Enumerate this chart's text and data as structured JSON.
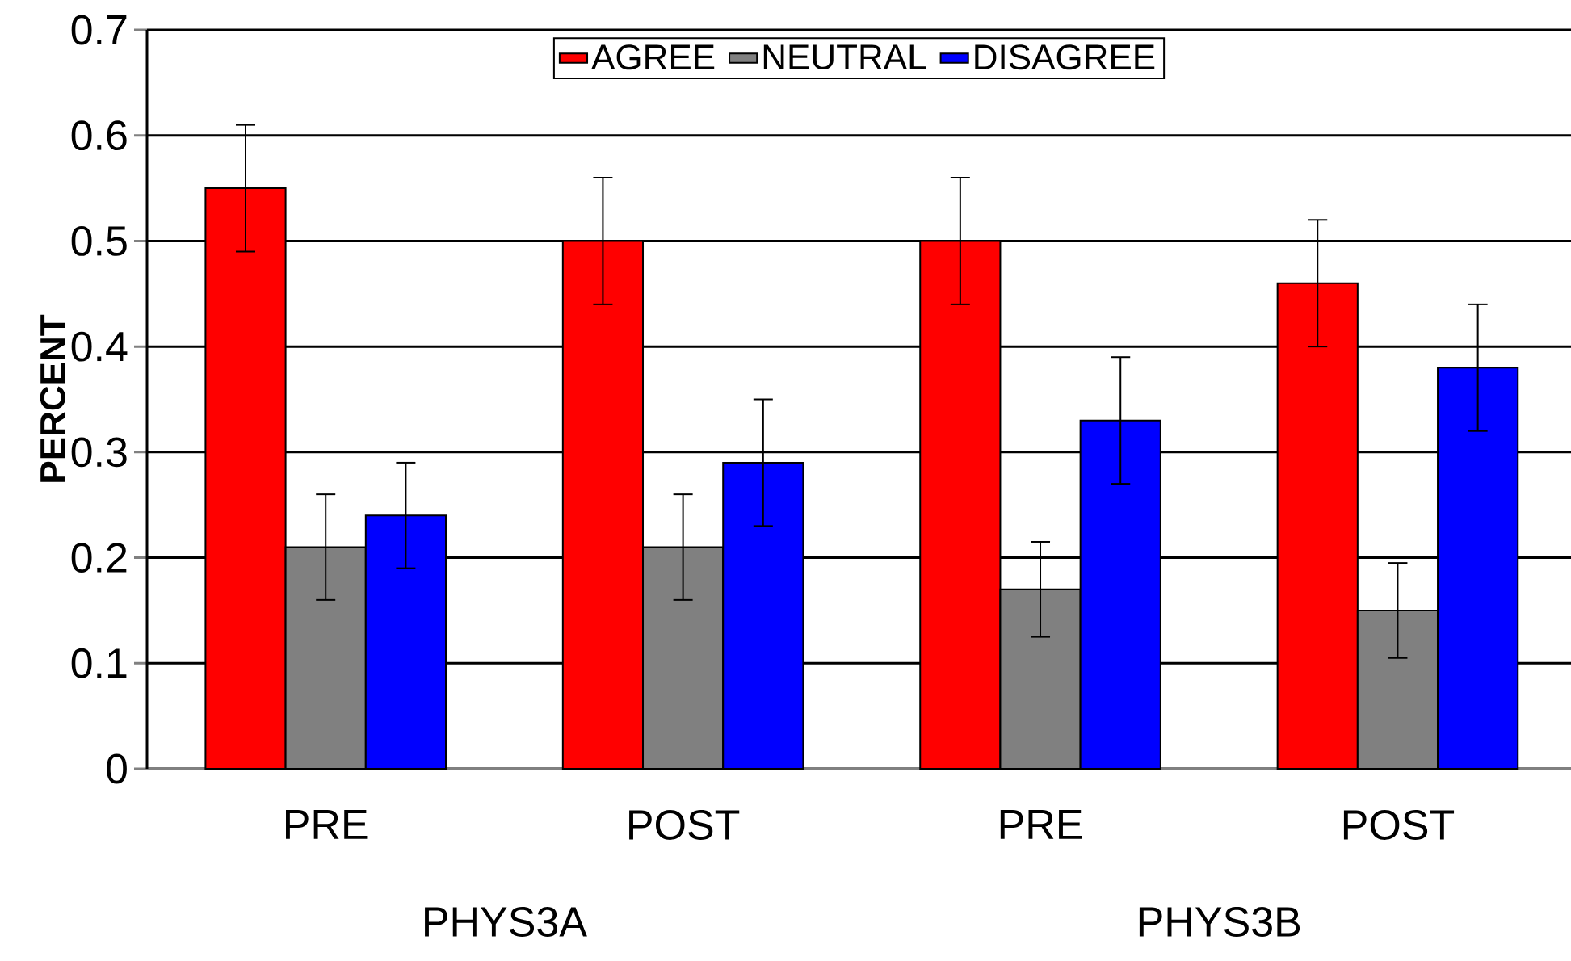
{
  "chart_data": {
    "type": "bar",
    "ylabel": "PERCENT",
    "categories": [
      "PRE",
      "POST",
      "PRE",
      "POST"
    ],
    "series": [
      {
        "name": "AGREE",
        "color": "#ff0000",
        "values": [
          0.55,
          0.5,
          0.5,
          0.46
        ],
        "errors": [
          [
            0.49,
            0.61
          ],
          [
            0.44,
            0.56
          ],
          [
            0.44,
            0.56
          ],
          [
            0.4,
            0.52
          ]
        ]
      },
      {
        "name": "NEUTRAL",
        "color": "#808080",
        "values": [
          0.21,
          0.21,
          0.17,
          0.15
        ],
        "errors": [
          [
            0.16,
            0.26
          ],
          [
            0.16,
            0.26
          ],
          [
            0.125,
            0.215
          ],
          [
            0.105,
            0.195
          ]
        ]
      },
      {
        "name": "DISAGREE",
        "color": "#0000ff",
        "values": [
          0.24,
          0.29,
          0.33,
          0.38
        ],
        "errors": [
          [
            0.19,
            0.29
          ],
          [
            0.23,
            0.35
          ],
          [
            0.27,
            0.39
          ],
          [
            0.32,
            0.44
          ]
        ]
      }
    ],
    "annotations": [
      "PHYS3A",
      "PHYS3B"
    ],
    "ylim": [
      0,
      0.7
    ],
    "yticks": [
      0,
      0.1,
      0.2,
      0.3,
      0.4,
      0.5,
      0.6,
      0.7
    ],
    "grid": "y",
    "legend": "top"
  }
}
